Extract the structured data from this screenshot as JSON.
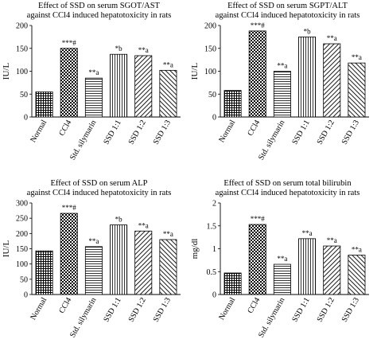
{
  "chart_data": [
    {
      "type": "bar",
      "title": "Effect of SSD on serum SGOT/AST",
      "subtitle": "against CCl4 induced hepatotoxicity in rats",
      "xlabel": "",
      "ylabel": "IU/L",
      "ylim": [
        0,
        200
      ],
      "yticks": [
        "0",
        "50",
        "100",
        "150",
        "200"
      ],
      "categories": [
        "Normal",
        "CCl4",
        "Std. silymarin",
        "SSD 1:1",
        "SSD 1:2",
        "SSD 1:3"
      ],
      "values": [
        55,
        150,
        85,
        137,
        134,
        102
      ],
      "annotations": [
        "",
        "***#",
        "**a",
        "*b",
        "**a",
        "**a"
      ]
    },
    {
      "type": "bar",
      "title": "Effect of SSD on serum SGPT/ALT",
      "subtitle": "against CCl4 induced hepatotoxicity in rats",
      "xlabel": "",
      "ylabel": "IU/L",
      "ylim": [
        0,
        200
      ],
      "yticks": [
        "0",
        "50",
        "100",
        "150",
        "200"
      ],
      "categories": [
        "Normal",
        "CCl4",
        "Std. silymarin",
        "SSD 1:1",
        "SSD 1:2",
        "SSD 1:3"
      ],
      "values": [
        58,
        188,
        100,
        175,
        160,
        118
      ],
      "annotations": [
        "",
        "***#",
        "**a",
        "*b",
        "**a",
        "**a"
      ]
    },
    {
      "type": "bar",
      "title": "Effect of SSD on serum ALP",
      "subtitle": "against CCl4 induced hepatotoxicity in rats",
      "xlabel": "",
      "ylabel": "IU/L",
      "ylim": [
        0,
        300
      ],
      "yticks": [
        "0",
        "50",
        "100",
        "150",
        "200",
        "250",
        "300"
      ],
      "categories": [
        "Normal",
        "CCl4",
        "Std. silymarin",
        "SSD 1:1",
        "SSD 1:2",
        "SSD 1:3"
      ],
      "values": [
        143,
        266,
        157,
        228,
        208,
        180
      ],
      "annotations": [
        "",
        "***#",
        "**a",
        "*b",
        "**a",
        "**a"
      ]
    },
    {
      "type": "bar",
      "title": "Effect of SSD on serum total bilirubin",
      "subtitle": "against CCl4 induced hepatotoxicity in rats",
      "xlabel": "",
      "ylabel": "mg/dl",
      "ylim": [
        0,
        2
      ],
      "yticks": [
        "0",
        "0.5",
        "1",
        "1.5",
        "2"
      ],
      "categories": [
        "Normal",
        "CCl4",
        "Std. silymarin",
        "SSD 1:1",
        "SSD 1:2",
        "SSD 1:3"
      ],
      "values": [
        0.47,
        1.53,
        0.66,
        1.22,
        1.06,
        0.86
      ],
      "annotations": [
        "",
        "***#",
        "**a",
        "**a",
        "**a",
        "**a"
      ]
    }
  ],
  "bar_patterns": [
    "grid",
    "checker",
    "horizontal",
    "vertical",
    "diagonal",
    "diagonal-reverse"
  ]
}
